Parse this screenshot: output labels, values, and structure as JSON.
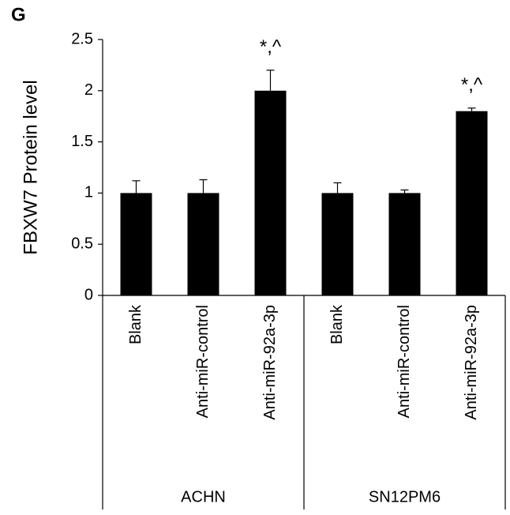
{
  "chart_data": {
    "type": "bar",
    "panel": "G",
    "ylabel": "FBXW7 Protein level",
    "groups": [
      {
        "label": "ACHN",
        "categories": [
          "Blank",
          "Anti-miR-control",
          "Anti-miR-92a-3p"
        ]
      },
      {
        "label": "SN12PM6",
        "categories": [
          "Blank",
          "Anti-miR-control",
          "Anti-miR-92a-3p"
        ]
      }
    ],
    "values": [
      1,
      1,
      2,
      1,
      1,
      1.8
    ],
    "errors": [
      0.12,
      0.13,
      0.2,
      0.1,
      0.03,
      0.03
    ],
    "annotations": [
      null,
      null,
      "*,^",
      null,
      null,
      "*,^"
    ],
    "color": "#000000",
    "ylim": [
      0,
      2.5
    ],
    "yticks": [
      0,
      0.5,
      1,
      1.5,
      2,
      2.5
    ],
    "grid": false
  }
}
